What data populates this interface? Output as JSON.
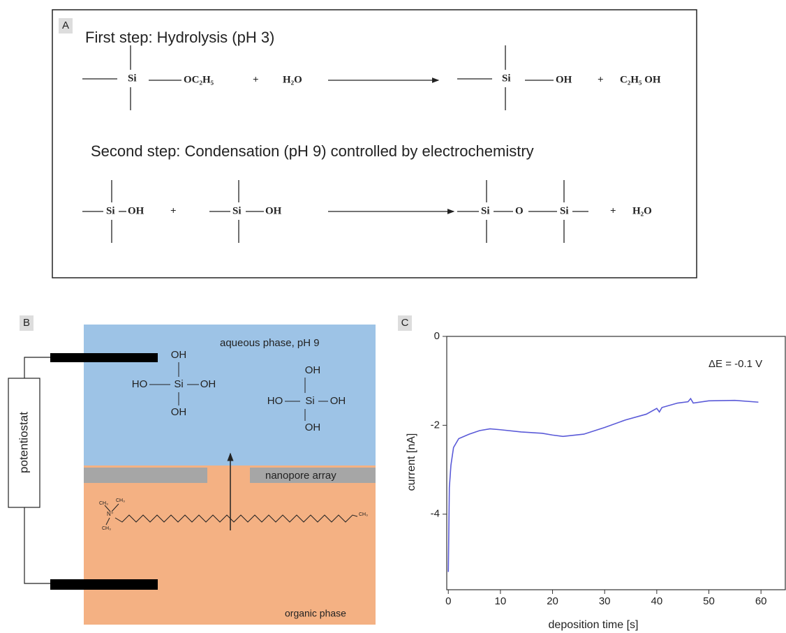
{
  "panel_a": {
    "label": "A",
    "step1_title": "First step: Hydrolysis (pH 3)",
    "step1_equation": [
      "Si",
      "OC₂H₅",
      "+",
      "H₂O",
      "Si",
      "OH",
      "+",
      "C₂H₅ OH"
    ],
    "step2_title": "Second step: Condensation (pH 9) controlled by electrochemistry",
    "step2_equation": [
      "Si",
      "OH",
      "+",
      "Si",
      "OH",
      "Si",
      "O",
      "Si",
      "+",
      "H₂O"
    ]
  },
  "panel_b": {
    "label": "B",
    "device": "potentiostat",
    "aqueous_phase": "aqueous phase, pH 9",
    "membrane": "nanopore array",
    "organic_phase": "organic phase",
    "silicic_acid_1": [
      "OH",
      "HO",
      "Si",
      "OH",
      "OH"
    ],
    "silicic_acid_2": [
      "OH",
      "HO",
      "Si",
      "OH",
      "OH"
    ],
    "surfactant": [
      "CH₃",
      "CH₃",
      "N⁺",
      "CH₃",
      "CH₃"
    ]
  },
  "chart_data": {
    "type": "line",
    "label": "C",
    "annotation": "ΔE = -0.1 V",
    "xlabel": "deposition time [s]",
    "ylabel": "current  [nA]",
    "x": [
      0,
      0.2,
      0.5,
      1,
      2,
      4,
      6,
      8,
      10,
      14,
      18,
      20,
      22,
      26,
      30,
      34,
      38,
      40,
      40.5,
      41,
      44,
      46,
      46.5,
      47,
      50,
      55,
      59.5
    ],
    "values": [
      -5.3,
      -3.4,
      -2.9,
      -2.5,
      -2.3,
      -2.2,
      -2.12,
      -2.08,
      -2.1,
      -2.15,
      -2.18,
      -2.22,
      -2.25,
      -2.2,
      -2.05,
      -1.88,
      -1.75,
      -1.62,
      -1.7,
      -1.6,
      -1.5,
      -1.47,
      -1.4,
      -1.5,
      -1.45,
      -1.44,
      -1.48
    ],
    "color": "#5a5ad8",
    "xlim": [
      -0.3,
      64.8
    ],
    "xticks": [
      0,
      10,
      20,
      30,
      40,
      50,
      60
    ],
    "ylim": [
      -5.7,
      0
    ],
    "yticks": [
      0,
      -2,
      -4
    ]
  }
}
